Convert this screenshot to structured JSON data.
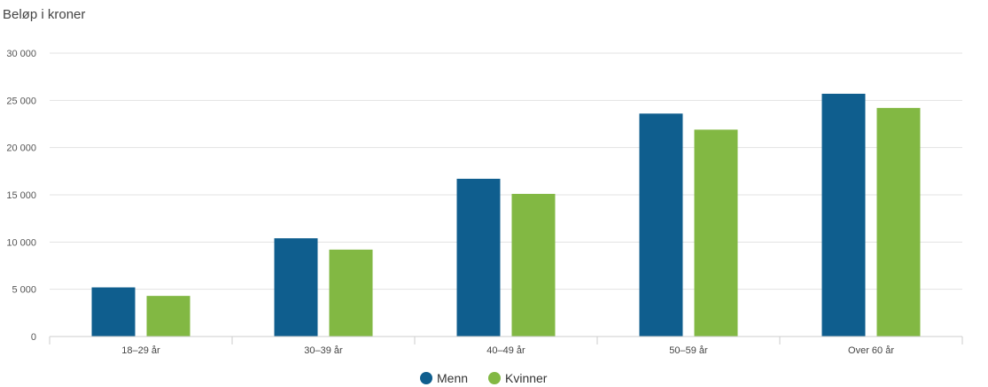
{
  "chart_data": {
    "type": "bar",
    "ylabel": "Beløp i kroner",
    "xlabel": "",
    "categories": [
      "18–29 år",
      "30–39 år",
      "40–49 år",
      "50–59 år",
      "Over 60 år"
    ],
    "series": [
      {
        "name": "Menn",
        "color": "#0f5e8e",
        "values": [
          5200,
          10400,
          16700,
          23600,
          25700
        ]
      },
      {
        "name": "Kvinner",
        "color": "#82b843",
        "values": [
          4300,
          9200,
          15100,
          21900,
          24200
        ]
      }
    ],
    "ylim": [
      0,
      30000
    ],
    "yticks": [
      0,
      5000,
      10000,
      15000,
      20000,
      25000,
      30000
    ],
    "ytick_labels": [
      "0",
      "5 000",
      "10 000",
      "15 000",
      "20 000",
      "25 000",
      "30 000"
    ],
    "grid": true,
    "legend_position": "bottom-center"
  }
}
